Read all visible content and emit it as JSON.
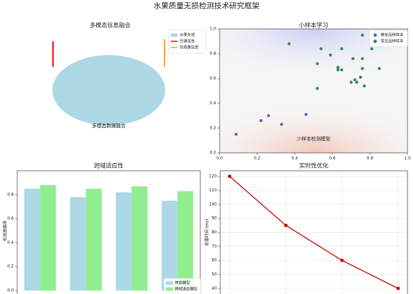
{
  "title": "水果质量无损检测技术研究框架",
  "chart_data": [
    {
      "type": "diagram",
      "title": "多模态信息融合",
      "label": "多模态数据融合",
      "series": [
        {
          "name": "水果外观",
          "color": "#add8e6"
        },
        {
          "name": "光谱信息",
          "color": "#ff0000"
        },
        {
          "name": "热成像信息",
          "color": "#ffa500"
        }
      ]
    },
    {
      "type": "scatter",
      "title": "小样本学习",
      "annotation": "少样本检测模型",
      "xlim": [
        0,
        1
      ],
      "ylim": [
        0,
        1
      ],
      "xticks": [
        {
          "value": 0,
          "label": "0.0"
        },
        0.2,
        0.4,
        0.6,
        0.8,
        {
          "value": 1,
          "label": "1.0"
        }
      ],
      "yticks": [
        {
          "value": 0,
          "label": "0.0"
        },
        0.2,
        0.4,
        0.6,
        0.8,
        {
          "value": 1,
          "label": "1.0"
        }
      ],
      "series": [
        {
          "name": "稀有品种样本",
          "color": "#6a5acd",
          "x": [
            0.088,
            0.22,
            0.26,
            0.33,
            0.46
          ],
          "values": [
            0.15,
            0.26,
            0.3,
            0.23,
            0.31
          ]
        },
        {
          "name": "常见品种样本",
          "color": "#2e8b57",
          "x": [
            0.37,
            0.76,
            0.81,
            0.52,
            0.52,
            0.54,
            0.59,
            0.63,
            0.65,
            0.65,
            0.63,
            0.71,
            0.76,
            0.76,
            0.72,
            0.7,
            0.73,
            0.77,
            0.75,
            0.85
          ],
          "values": [
            0.88,
            0.95,
            0.84,
            0.72,
            0.52,
            0.84,
            0.79,
            0.69,
            0.84,
            0.67,
            0.67,
            0.76,
            0.76,
            0.68,
            0.59,
            0.57,
            0.57,
            0.54,
            0.61,
            0.68
          ]
        }
      ]
    },
    {
      "type": "bar",
      "title": "跨域适应性",
      "ylabel": "检测准确率",
      "categories": [
        null,
        null,
        null,
        null
      ],
      "ylim": [
        0,
        1
      ],
      "yticks": [
        {
          "value": 0,
          "label": "0.0"
        },
        0.2,
        0.4,
        0.6,
        0.8
      ],
      "legend": "lower right",
      "series": [
        {
          "name": "原始模型",
          "color": "#add8e6",
          "values": [
            0.85,
            0.78,
            0.82,
            0.75
          ]
        },
        {
          "name": "跨域适应模型",
          "color": "#90ee90",
          "values": [
            0.88,
            0.85,
            0.87,
            0.83
          ]
        }
      ]
    },
    {
      "type": "line",
      "title": "实时性优化",
      "ylabel": "处理时间 (ms)",
      "categories": [
        null,
        null,
        null,
        null
      ],
      "ylim": [
        36,
        124
      ],
      "yticks": [
        40,
        50,
        60,
        70,
        80,
        90,
        100,
        110,
        120
      ],
      "grid": true,
      "color": "#cc0000",
      "values": [
        120,
        85,
        60,
        40
      ]
    }
  ]
}
